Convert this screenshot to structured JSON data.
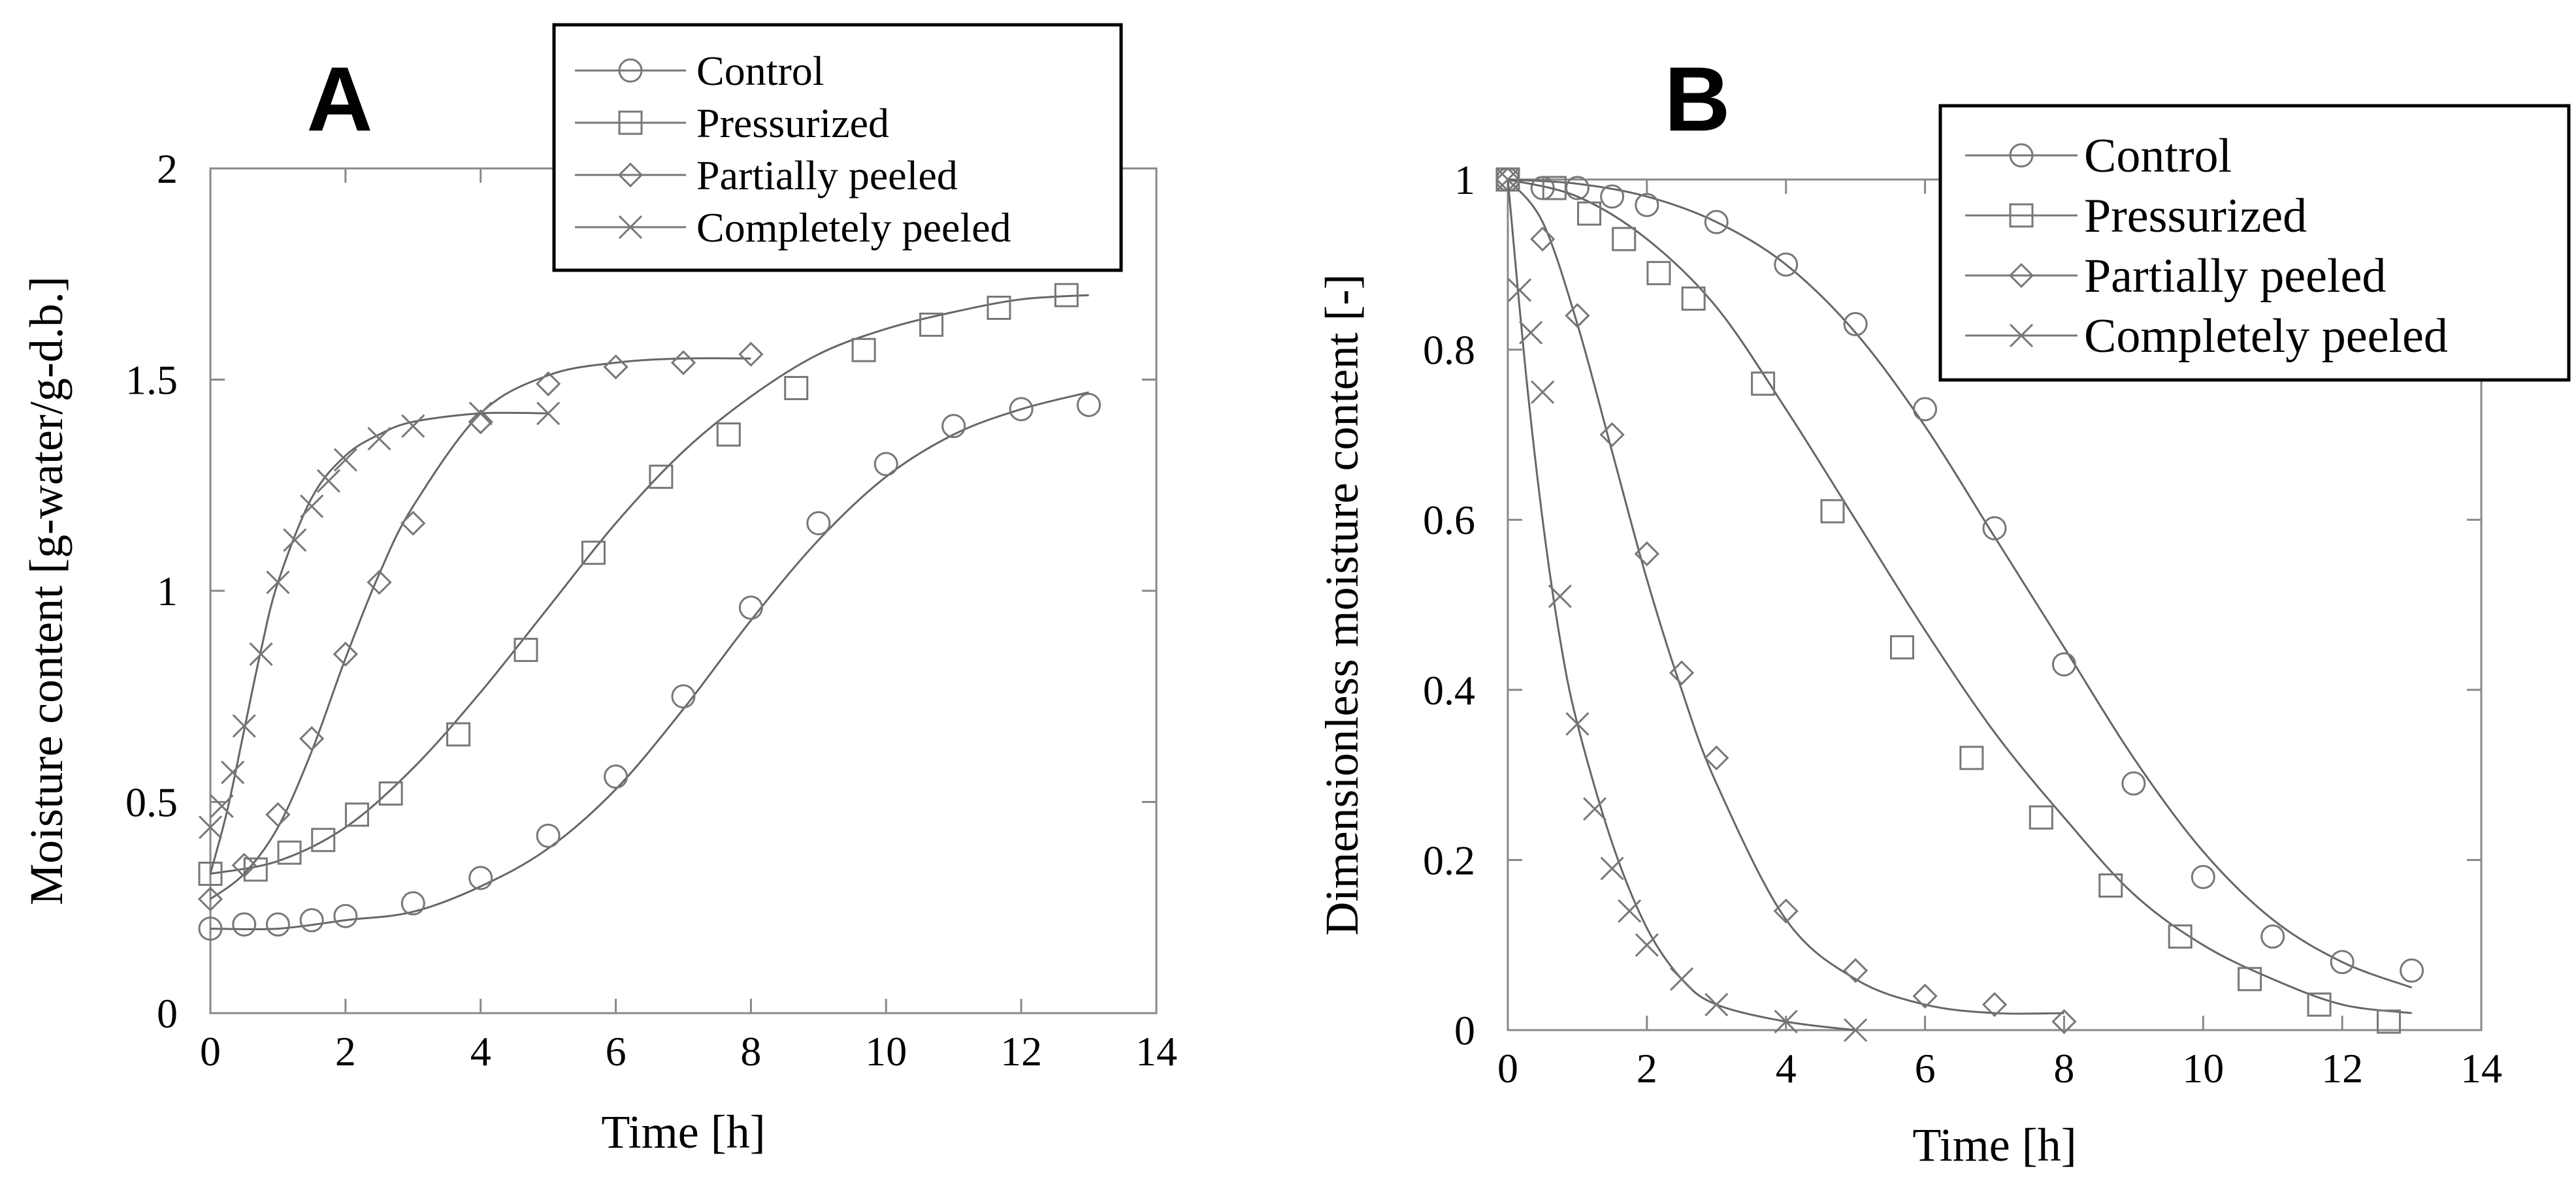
{
  "chart_data": [
    {
      "panel": "A",
      "type": "line",
      "title": "",
      "xlabel": "Time [h]",
      "ylabel": "Moisture content [g-water/g-d.b.]",
      "xlim": [
        0,
        14
      ],
      "ylim": [
        0,
        2
      ],
      "xticks": [
        0,
        2,
        4,
        6,
        8,
        10,
        12,
        14
      ],
      "xtick_labels": [
        "0",
        "2",
        "4",
        "6",
        "8",
        "10",
        "12",
        "14"
      ],
      "yticks": [
        0,
        0.5,
        1,
        1.5,
        2
      ],
      "ytick_labels": [
        "0",
        "0.5",
        "1",
        "1.5",
        "2"
      ],
      "grid": false,
      "legend_position": "top-right",
      "series": [
        {
          "name": "Control",
          "marker": "circle",
          "x": [
            0,
            0.5,
            1,
            1.5,
            2,
            3,
            4,
            5,
            6,
            7,
            8,
            9,
            10,
            11,
            12,
            13
          ],
          "y": [
            0.2,
            0.21,
            0.21,
            0.22,
            0.23,
            0.26,
            0.32,
            0.42,
            0.56,
            0.75,
            0.96,
            1.16,
            1.3,
            1.39,
            1.43,
            1.44
          ],
          "fit_x": [
            0,
            1,
            2,
            3,
            4,
            5,
            6,
            7,
            8,
            9,
            10,
            11,
            12,
            13
          ],
          "fit_y": [
            0.2,
            0.2,
            0.22,
            0.24,
            0.3,
            0.39,
            0.53,
            0.72,
            0.93,
            1.12,
            1.27,
            1.37,
            1.43,
            1.47
          ]
        },
        {
          "name": "Pressurized",
          "marker": "square",
          "x": [
            0,
            0.67,
            1.17,
            1.67,
            2.17,
            2.67,
            3.67,
            4.67,
            5.67,
            6.67,
            7.67,
            8.67,
            9.67,
            10.67,
            11.67,
            12.67
          ],
          "y": [
            0.33,
            0.34,
            0.38,
            0.41,
            0.47,
            0.52,
            0.66,
            0.86,
            1.09,
            1.27,
            1.37,
            1.48,
            1.57,
            1.63,
            1.67,
            1.7
          ],
          "fit_x": [
            0,
            1,
            2,
            3,
            4,
            5,
            6,
            7,
            8,
            9,
            10,
            11,
            12,
            13
          ],
          "fit_y": [
            0.33,
            0.36,
            0.44,
            0.58,
            0.76,
            0.96,
            1.16,
            1.33,
            1.46,
            1.56,
            1.62,
            1.66,
            1.69,
            1.7
          ]
        },
        {
          "name": "Partially peeled",
          "marker": "diamond",
          "x": [
            0,
            0.5,
            1,
            1.5,
            2,
            2.5,
            3,
            4,
            5,
            6,
            7,
            8
          ],
          "y": [
            0.27,
            0.35,
            0.47,
            0.65,
            0.85,
            1.02,
            1.16,
            1.4,
            1.49,
            1.53,
            1.54,
            1.56
          ],
          "fit_x": [
            0,
            0.5,
            1,
            1.5,
            2,
            2.5,
            3,
            4,
            5,
            6,
            7,
            8
          ],
          "fit_y": [
            0.27,
            0.33,
            0.44,
            0.62,
            0.84,
            1.04,
            1.2,
            1.42,
            1.51,
            1.54,
            1.55,
            1.55
          ]
        },
        {
          "name": "Completely peeled",
          "marker": "cross",
          "x": [
            0,
            0.17,
            0.33,
            0.5,
            0.75,
            1,
            1.25,
            1.5,
            1.75,
            2,
            2.5,
            3,
            4,
            5
          ],
          "y": [
            0.44,
            0.49,
            0.57,
            0.68,
            0.85,
            1.02,
            1.12,
            1.2,
            1.26,
            1.31,
            1.36,
            1.39,
            1.42,
            1.42
          ],
          "fit_x": [
            0,
            0.25,
            0.5,
            0.75,
            1,
            1.5,
            2,
            2.5,
            3,
            4,
            5
          ],
          "fit_y": [
            0.33,
            0.48,
            0.67,
            0.86,
            1.02,
            1.22,
            1.32,
            1.37,
            1.4,
            1.42,
            1.42
          ]
        }
      ]
    },
    {
      "panel": "B",
      "type": "line",
      "title": "",
      "xlabel": "Time [h]",
      "ylabel": "Dimensionless moisture content [-]",
      "xlim": [
        0,
        14
      ],
      "ylim": [
        0,
        1
      ],
      "xticks": [
        0,
        2,
        4,
        6,
        8,
        10,
        12,
        14
      ],
      "xtick_labels": [
        "0",
        "2",
        "4",
        "6",
        "8",
        "10",
        "12",
        "14"
      ],
      "yticks": [
        0,
        0.2,
        0.4,
        0.6,
        0.8,
        1
      ],
      "ytick_labels": [
        "0",
        "0.2",
        "0.4",
        "0.6",
        "0.8",
        "1"
      ],
      "grid": false,
      "legend_position": "top-right",
      "series": [
        {
          "name": "Control",
          "marker": "circle",
          "x": [
            0,
            0.5,
            1,
            1.5,
            2,
            3,
            4,
            5,
            6,
            7,
            8,
            9,
            10,
            11,
            12,
            13
          ],
          "y": [
            1,
            0.99,
            0.99,
            0.98,
            0.97,
            0.95,
            0.9,
            0.83,
            0.73,
            0.59,
            0.43,
            0.29,
            0.18,
            0.11,
            0.08,
            0.07
          ],
          "fit_x": [
            0,
            1,
            2,
            3,
            4,
            5,
            6,
            7,
            8,
            9,
            10,
            11,
            12,
            13
          ],
          "fit_y": [
            1,
            0.995,
            0.98,
            0.95,
            0.9,
            0.82,
            0.71,
            0.58,
            0.45,
            0.32,
            0.21,
            0.13,
            0.08,
            0.05
          ]
        },
        {
          "name": "Pressurized",
          "marker": "square",
          "x": [
            0,
            0.67,
            1.17,
            1.67,
            2.17,
            2.67,
            3.67,
            4.67,
            5.67,
            6.67,
            7.67,
            8.67,
            9.67,
            10.67,
            11.67,
            12.67
          ],
          "y": [
            1,
            0.99,
            0.96,
            0.93,
            0.89,
            0.86,
            0.76,
            0.61,
            0.45,
            0.32,
            0.25,
            0.17,
            0.11,
            0.06,
            0.03,
            0.01
          ],
          "fit_x": [
            0,
            1,
            2,
            3,
            4,
            5,
            6,
            7,
            8,
            9,
            10,
            11,
            12,
            13
          ],
          "fit_y": [
            1,
            0.98,
            0.93,
            0.85,
            0.73,
            0.6,
            0.47,
            0.35,
            0.25,
            0.16,
            0.1,
            0.06,
            0.03,
            0.02
          ]
        },
        {
          "name": "Partially peeled",
          "marker": "diamond",
          "x": [
            0,
            0.5,
            1,
            1.5,
            2,
            2.5,
            3,
            4,
            5,
            6,
            7,
            8
          ],
          "y": [
            1,
            0.93,
            0.84,
            0.7,
            0.56,
            0.42,
            0.32,
            0.14,
            0.07,
            0.04,
            0.03,
            0.01
          ],
          "fit_x": [
            0,
            0.5,
            1,
            1.5,
            2,
            2.5,
            3,
            4,
            5,
            6,
            7,
            8
          ],
          "fit_y": [
            1,
            0.95,
            0.83,
            0.68,
            0.53,
            0.4,
            0.29,
            0.13,
            0.06,
            0.03,
            0.02,
            0.02
          ]
        },
        {
          "name": "Completely peeled",
          "marker": "cross",
          "x": [
            0,
            0.17,
            0.33,
            0.5,
            0.75,
            1,
            1.25,
            1.5,
            1.75,
            2,
            2.5,
            3,
            4,
            5
          ],
          "y": [
            1,
            0.87,
            0.82,
            0.75,
            0.51,
            0.36,
            0.26,
            0.19,
            0.14,
            0.1,
            0.06,
            0.03,
            0.01,
            0
          ],
          "fit_x": [
            0,
            0.25,
            0.5,
            0.75,
            1,
            1.5,
            2,
            2.5,
            3,
            4,
            5
          ],
          "fit_y": [
            1,
            0.78,
            0.6,
            0.46,
            0.36,
            0.22,
            0.12,
            0.06,
            0.03,
            0.01,
            0
          ]
        }
      ]
    }
  ]
}
